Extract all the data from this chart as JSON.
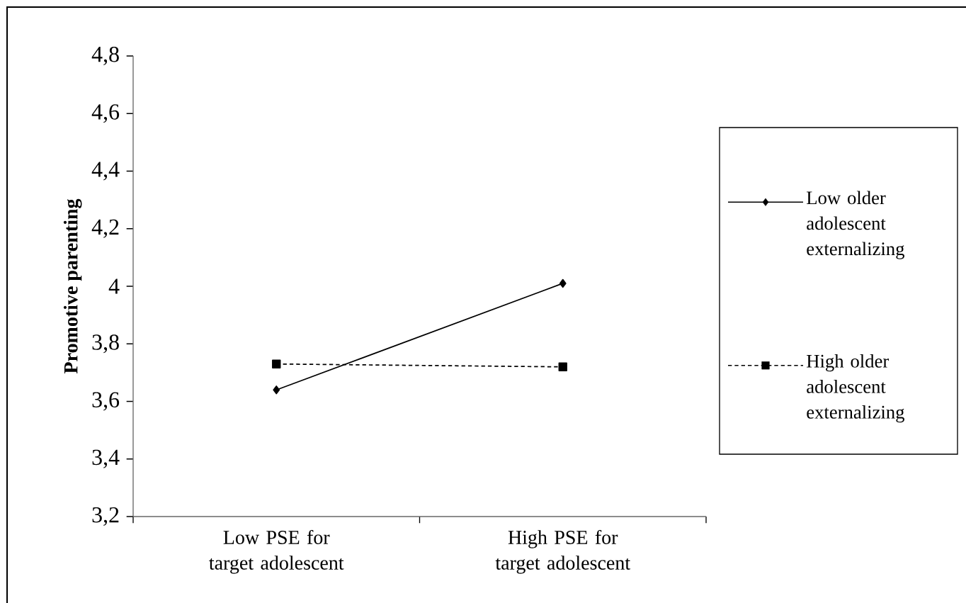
{
  "chart_data": {
    "type": "line",
    "ylabel": "Promotive parenting",
    "categories": [
      "Low PSE for target adolescent",
      "High PSE for target adolescent"
    ],
    "series": [
      {
        "name": "Low older adolescent externalizing",
        "color": "#000000",
        "values": [
          3.64,
          4.01
        ],
        "marker": "diamond",
        "line_style": "solid"
      },
      {
        "name": "High older adolescent externalizing",
        "color": "#000000",
        "values": [
          3.73,
          3.72
        ],
        "marker": "square",
        "line_style": "dashed"
      }
    ],
    "ylim": [
      3.2,
      4.8
    ],
    "yticks": [
      {
        "value": 3.2,
        "label": "3,2"
      },
      {
        "value": 3.4,
        "label": "3,4"
      },
      {
        "value": 3.6,
        "label": "3,6"
      },
      {
        "value": 3.8,
        "label": "3,8"
      },
      4,
      {
        "value": 4.2,
        "label": "4,2"
      },
      {
        "value": 4.4,
        "label": "4,4"
      },
      {
        "value": 4.6,
        "label": "4,6"
      },
      {
        "value": 4.8,
        "label": "4,8"
      }
    ],
    "grid": false,
    "legend": "right"
  }
}
